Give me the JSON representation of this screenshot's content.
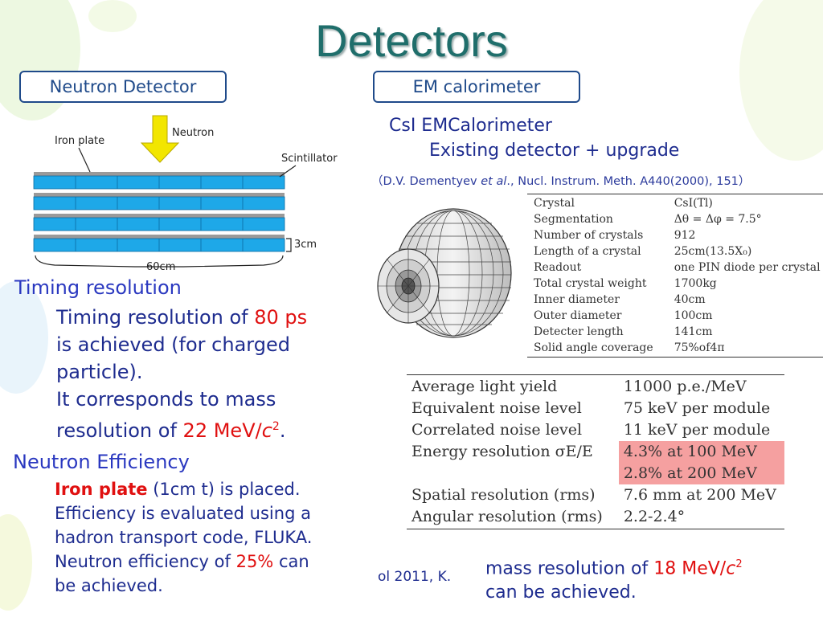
{
  "slide": {
    "title": "Detectors"
  },
  "left_box": {
    "label": "Neutron Detector"
  },
  "right_box": {
    "label": "EM calorimeter"
  },
  "neutron_diagram": {
    "iron_plate_label": "Iron plate",
    "neutron_label": "Neutron",
    "scintillator_label": "Scintillator",
    "thickness_label": "3cm",
    "width_label": "60cm"
  },
  "timing": {
    "heading": "Timing resolution",
    "line1_prefix": "Timing resolution of ",
    "line1_value": "80 ps",
    "line2": "is achieved (for charged",
    "line3": "particle).",
    "line4": "It corresponds to mass",
    "line5_prefix": "resolution of ",
    "line5_value": "22 MeV/",
    "line5_unit_c": "c",
    "line5_sup": "2",
    "line5_end": "."
  },
  "efficiency": {
    "heading": "Neutron Efficiency",
    "line1_bold": "Iron plate",
    "line1_rest": " (1cm t) is placed.",
    "line2": "Efficiency is evaluated using a",
    "line3": "hadron transport code, FLUKA.",
    "line4_prefix": "Neutron efficiency of ",
    "line4_value": "25%",
    "line4_suffix": " can",
    "line5": "be achieved."
  },
  "footer_fragment": "ol 2011, K.",
  "calorimeter": {
    "heading": "CsI EMCalorimeter",
    "subheading": "Existing detector + upgrade",
    "ref_open": "（D.V. Dementyev ",
    "ref_italic": "et al",
    "ref_rest": "., Nucl. Instrum. Meth. A440(2000), 151）",
    "specs": [
      {
        "name": "Crystal",
        "value": "CsI(Tl)"
      },
      {
        "name": "Segmentation",
        "value": "Δθ = Δφ = 7.5°"
      },
      {
        "name": "Number of crystals",
        "value": "912"
      },
      {
        "name": "Length of a crystal",
        "value": "25cm(13.5X₀)"
      },
      {
        "name": "Readout",
        "value": "one PIN diode per crystal"
      },
      {
        "name": "Total crystal weight",
        "value": "1700kg"
      },
      {
        "name": "Inner diameter",
        "value": "40cm"
      },
      {
        "name": "Outer diameter",
        "value": "100cm"
      },
      {
        "name": "Detecter length",
        "value": "141cm"
      },
      {
        "name": "Solid angle coverage",
        "value": "75%of4π"
      }
    ],
    "performance": [
      {
        "name": "Average light yield",
        "value": "11000 p.e./MeV",
        "highlight": false
      },
      {
        "name": "Equivalent noise level",
        "value": "75 keV per module",
        "highlight": false
      },
      {
        "name": "Correlated noise level",
        "value": "11 keV per module",
        "highlight": false
      },
      {
        "name": "Energy resolution σE/E",
        "value": "4.3% at 100 MeV",
        "highlight": true
      },
      {
        "name": "",
        "value": "2.8% at 200 MeV",
        "highlight": true
      },
      {
        "name": "Spatial resolution (rms)",
        "value": "7.6 mm at 200 MeV",
        "highlight": false
      },
      {
        "name": "Angular resolution (rms)",
        "value": "2.2-2.4°",
        "highlight": false
      }
    ],
    "mass_prefix": "mass resolution of ",
    "mass_value": "18 MeV/",
    "mass_unit_c": "c",
    "mass_sup": "2",
    "mass_line2": "can be achieved."
  },
  "colors": {
    "title": "#1f6e6b",
    "box_border": "#1f4a8a",
    "highlight": "#e01010",
    "heading_blue": "#2a38c0",
    "body_navy": "#1e2c8f",
    "scintillator": "#1ea8e8",
    "arrow": "#f2e600"
  }
}
